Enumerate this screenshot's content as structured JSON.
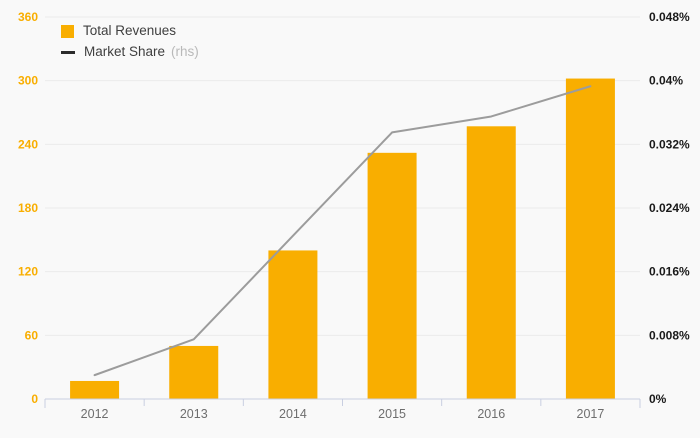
{
  "colors": {
    "background": "#F9F9F9",
    "grid": "#EBEBEB",
    "axis": "#C9CFE1",
    "bar": "#F9AE00",
    "line": "#9C9C9C",
    "legend_line_swatch": "#2B2B2B",
    "left_tick_label": "#F9AE00",
    "right_tick_label": "#1A1A1A",
    "x_tick_label": "#6E6E6E",
    "legend_text": "#3F3F3F",
    "rhs_text": "#B9B9B9"
  },
  "legend": {
    "items": [
      {
        "label": "Total Revenues"
      },
      {
        "label": "Market Share",
        "suffix": "(rhs)"
      }
    ]
  },
  "chart_data": {
    "type": "bar+line",
    "categories": [
      "2012",
      "2013",
      "2014",
      "2015",
      "2016",
      "2017"
    ],
    "series": [
      {
        "name": "Total Revenues",
        "type": "bar",
        "axis": "left",
        "color": "#F9AE00",
        "values": [
          17,
          50,
          140,
          232,
          257,
          302
        ]
      },
      {
        "name": "Market Share",
        "type": "line",
        "axis": "right",
        "color": "#9C9C9C",
        "unit": "%",
        "values": [
          0.003,
          0.0075,
          0.0205,
          0.0335,
          0.0355,
          0.0393
        ]
      }
    ],
    "left_axis": {
      "min": 0,
      "max": 360,
      "step": 60,
      "tick_labels": [
        "0",
        "60",
        "120",
        "180",
        "240",
        "300",
        "360"
      ]
    },
    "right_axis": {
      "min": 0,
      "max": 0.048,
      "step": 0.008,
      "tick_labels": [
        "0%",
        "0.008%",
        "0.016%",
        "0.024%",
        "0.032%",
        "0.04%",
        "0.048%"
      ]
    },
    "title": "",
    "xlabel": "",
    "ylabel": "",
    "grid": "horizontal",
    "legend_position": "top-left"
  }
}
